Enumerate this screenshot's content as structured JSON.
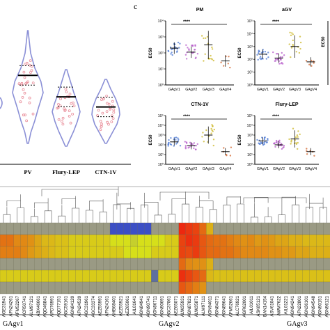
{
  "panel_c_letter": "c",
  "colors": {
    "violin_outline": "#8a8fd6",
    "violin_fill": "#ffffff",
    "violin_points": "#e98e9a",
    "axis": "#000000",
    "gagv1": "#3e6fd1",
    "gagv2": "#b04fc6",
    "gagv3": "#c9b21a",
    "gagv4": "#cf5a1e",
    "heat_low": "#2b3fd8",
    "heat_mid": "#d6df1a",
    "heat_high": "#ee1c0e",
    "heat_grey": "#9a9a84"
  },
  "chart_data": [
    {
      "type": "violin",
      "categories": [
        "PV",
        "Flury-LEP",
        "CTN-1V"
      ],
      "medians_relative": [
        0.62,
        0.47,
        0.4
      ]
    },
    {
      "type": "scatter",
      "title": "PM",
      "ylabel": "EC50",
      "categories": [
        "GAgV1",
        "GAgV2",
        "GAgV3",
        "GAgV4"
      ],
      "y_scale": "log",
      "ytick_labels": [
        "10⁴",
        "10³",
        "10²",
        "10¹",
        "10⁰"
      ],
      "significance": "****",
      "medians_log10": [
        2.3,
        2.05,
        2.5,
        1.5
      ]
    },
    {
      "type": "scatter",
      "title": "aGV",
      "ylabel": "EC50",
      "categories": [
        "GAgV1",
        "GAgV2",
        "GAgV3",
        "GAgV4"
      ],
      "y_scale": "log",
      "ytick_labels": [
        "10⁵",
        "10⁴",
        "10³",
        "10²",
        "10¹",
        "10⁰"
      ],
      "significance": "****",
      "medians_log10": [
        2.4,
        2.1,
        3.0,
        1.8
      ]
    },
    {
      "type": "scatter",
      "title": "CTN-1V",
      "ylabel": "EC50",
      "categories": [
        "GAgV1",
        "GAgV2",
        "GAgV3",
        "GAgV4"
      ],
      "y_scale": "log",
      "ytick_labels": [
        "10⁵",
        "10⁴",
        "10³",
        "10²",
        "10¹",
        "10⁰"
      ],
      "significance": "****",
      "medians_log10": [
        2.3,
        1.9,
        3.0,
        1.3
      ]
    },
    {
      "type": "scatter",
      "title": "Flury-LEP",
      "ylabel": "EC50",
      "categories": [
        "GAgV1",
        "GAgV2",
        "GAgV3",
        "GAgV4"
      ],
      "y_scale": "log",
      "ytick_labels": [
        "10⁵",
        "10⁴",
        "10³",
        "10²",
        "10¹",
        "10⁰"
      ],
      "significance": "****",
      "medians_log10": [
        2.4,
        2.0,
        2.6,
        1.3
      ]
    },
    {
      "type": "heatmap",
      "rows": 6,
      "column_labels": [
        "AGE31941",
        "AFN24261",
        "AFM52267",
        "ACR50741",
        "ALM97121",
        "ABX46661",
        "AQD46841",
        "APD76991",
        "AQD77151",
        "AGC59161",
        "AGN84120",
        "AFN24520",
        "AGC31961",
        "AGC33374",
        "AEZ55991",
        "AFN24161",
        "AHB68401",
        "AEZ55921",
        "AEZ65061",
        "AIL01641",
        "AGN84941",
        "AGN90741",
        "AGN86711",
        "AGN90691",
        "AGC37061",
        "AEZ65071",
        "ALW35931",
        "AGN87821",
        "ALW35871",
        "ALM97111",
        "AGN94011",
        "AGN84371",
        "AGN89641",
        "AFM52661",
        "ALC76921",
        "AGR62001",
        "AIL01011",
        "ASK85121",
        "BAN14154",
        "ASV61041",
        "AWM7622",
        "AIL01221",
        "AGN94241",
        "AFN22801",
        "AGN36101",
        "AGN94548",
        "AGN90151",
        "AGN96121"
      ],
      "row_values": [
        [
          0.5,
          0.5,
          0.5,
          0.5,
          0.5,
          0.5,
          0.5,
          0.5,
          0.5,
          0.5,
          0.5,
          0.5,
          0.5,
          0.5,
          0.5,
          0.5,
          0.05,
          0.05,
          0.05,
          0.05,
          0.05,
          0.05,
          0.4,
          0.4,
          0.4,
          0.4,
          0.97,
          0.93,
          0.9,
          0.8,
          0.62,
          0.55,
          0.55,
          0.55,
          0.55,
          0.55,
          0.55,
          0.55,
          0.6,
          0.55,
          0.55,
          0.55,
          0.55,
          0.55,
          0.55,
          0.55,
          0.55,
          0.55
        ],
        [
          0.78,
          0.78,
          0.72,
          0.72,
          0.7,
          0.65,
          0.6,
          0.6,
          0.58,
          0.58,
          0.55,
          0.55,
          0.55,
          0.55,
          0.55,
          0.55,
          0.5,
          0.5,
          0.5,
          0.45,
          0.5,
          0.5,
          0.5,
          0.5,
          0.55,
          0.55,
          0.9,
          0.95,
          0.92,
          0.85,
          0.8,
          0.78,
          0.78,
          0.75,
          0.72,
          0.7,
          0.72,
          0.68,
          0.7,
          0.68,
          0.65,
          0.65,
          0.62,
          0.62,
          0.6,
          0.6,
          0.6,
          0.6
        ],
        [
          0.75,
          0.75,
          0.75,
          0.72,
          0.68,
          0.65,
          0.62,
          0.6,
          0.58,
          0.58,
          0.55,
          0.55,
          0.55,
          0.55,
          0.55,
          0.55,
          0.55,
          0.55,
          0.5,
          0.5,
          0.5,
          0.5,
          0.55,
          0.55,
          0.55,
          0.55,
          0.9,
          0.88,
          0.92,
          0.85,
          0.8,
          0.8,
          0.78,
          0.78,
          0.75,
          0.72,
          0.72,
          0.72,
          0.72,
          0.7,
          0.7,
          0.68,
          0.68,
          0.65,
          0.65,
          0.62,
          0.62,
          0.62
        ],
        [
          0.4,
          0.4,
          0.4,
          0.4,
          0.4,
          0.45,
          0.52,
          0.52,
          0.55,
          0.55,
          0.52,
          0.4,
          0.4,
          0.4,
          0.4,
          0.4,
          0.4,
          0.4,
          0.4,
          0.4,
          0.4,
          0.4,
          0.4,
          0.4,
          0.4,
          0.4,
          0.8,
          0.72,
          0.7,
          0.7,
          0.62,
          0.58,
          0.58,
          0.55,
          0.55,
          0.55,
          0.55,
          0.55,
          0.55,
          0.55,
          0.55,
          0.55,
          0.55,
          0.55,
          0.55,
          0.55,
          0.55,
          0.55
        ],
        [
          0.55,
          0.55,
          0.55,
          0.55,
          0.55,
          0.55,
          0.55,
          0.55,
          0.55,
          0.55,
          0.55,
          0.55,
          0.55,
          0.55,
          0.55,
          0.55,
          0.55,
          0.55,
          0.55,
          0.55,
          0.55,
          0.55,
          0.15,
          0.55,
          0.55,
          0.55,
          0.95,
          0.9,
          0.85,
          0.8,
          0.6,
          0.58,
          0.58,
          0.58,
          0.58,
          0.58,
          0.58,
          0.58,
          0.58,
          0.58,
          0.58,
          0.58,
          0.58,
          0.58,
          0.58,
          0.58,
          0.58,
          0.58
        ],
        [
          0.45,
          0.45,
          0.45,
          0.45,
          0.45,
          0.45,
          0.45,
          0.45,
          0.45,
          0.45,
          0.45,
          0.45,
          0.45,
          0.45,
          0.45,
          0.45,
          0.45,
          0.45,
          0.45,
          0.45,
          0.45,
          0.45,
          0.45,
          0.45,
          0.45,
          0.45,
          0.85,
          0.8,
          0.75,
          0.7,
          0.6,
          0.55,
          0.55,
          0.55,
          0.55,
          0.55,
          0.55,
          0.55,
          0.55,
          0.55,
          0.55,
          0.55,
          0.55,
          0.55,
          0.55,
          0.55,
          0.55,
          0.55
        ]
      ],
      "grey_rows": [
        0,
        3,
        5
      ],
      "group_labels": [
        "GAgv1",
        "GAgv2",
        "GAgv3"
      ]
    }
  ]
}
